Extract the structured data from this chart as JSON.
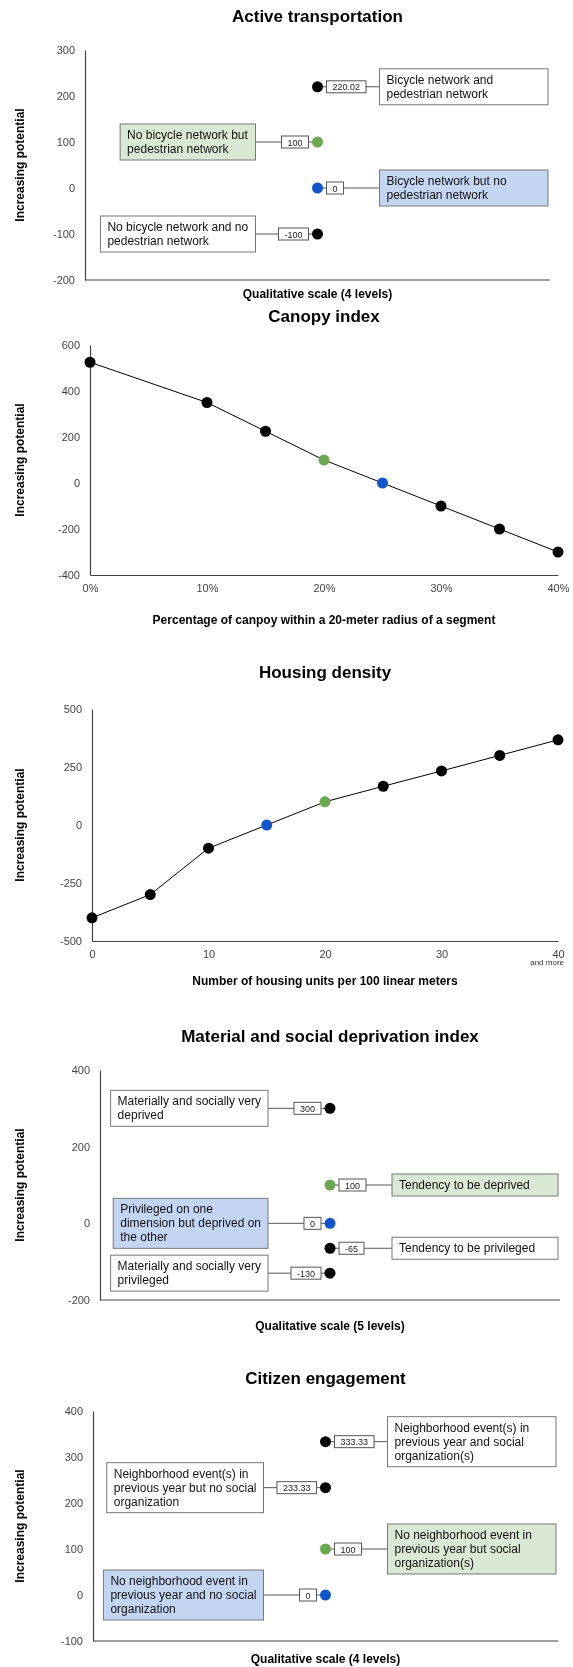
{
  "chart_data": [
    {
      "type": "scatter",
      "title": "Active transportation",
      "xlabel": "Qualitative scale (4 levels)",
      "ylabel": "Increasing potential",
      "categories": [
        null
      ],
      "ylim": [
        -200,
        300
      ],
      "yticks": [
        -200,
        -100,
        0,
        100,
        200,
        300
      ],
      "tick_labels": "y",
      "marker": "circle",
      "data_labels": true,
      "series": [
        {
          "name": "Bicycle network and pedestrian network",
          "color": "#000000",
          "values": [
            220.02
          ]
        },
        {
          "name": "No bicycle network but pedestrian network",
          "color": "#6aa84f",
          "values": [
            100
          ]
        },
        {
          "name": "Bicycle network but no pedestrian network",
          "color": "#1155cc",
          "values": [
            0
          ]
        },
        {
          "name": "No bicycle network and no pedestrian network",
          "color": "#000000",
          "values": [
            -100
          ]
        }
      ]
    },
    {
      "type": "line",
      "title": "Canopy index",
      "xlabel": "Percentage of canpoy within a 20-meter radius of a segment",
      "ylabel": "Increasing potential",
      "x": [
        0,
        10,
        15,
        20,
        25,
        30,
        35,
        40
      ],
      "xlim": [
        0,
        40
      ],
      "xticks": [
        {
          "value": 0,
          "label": "0%"
        },
        {
          "value": 10,
          "label": "10%"
        },
        {
          "value": 20,
          "label": "20%"
        },
        {
          "value": 30,
          "label": "30%"
        },
        {
          "value": 40,
          "label": "40%"
        }
      ],
      "ylim": [
        -400,
        600
      ],
      "yticks": [
        -400,
        -200,
        0,
        200,
        400,
        600
      ],
      "marker": "circle",
      "line_style": "solid",
      "series": [
        {
          "color": "#000000",
          "values": [
            525,
            350,
            225,
            100,
            0,
            -100,
            -200,
            -300
          ],
          "colors": [
            "#000000",
            "#000000",
            "#000000",
            "#6aa84f",
            "#1155cc",
            "#000000",
            "#000000",
            "#000000"
          ]
        }
      ]
    },
    {
      "type": "line",
      "title": "Housing density",
      "xlabel": "Number of housing units per 100 linear meters",
      "ylabel": "Increasing potential",
      "x": [
        0,
        5,
        10,
        15,
        20,
        25,
        30,
        35,
        40
      ],
      "xlim": [
        0,
        40
      ],
      "xticks": [
        0,
        10,
        20,
        30,
        40
      ],
      "ylim": [
        -500,
        500
      ],
      "yticks": [
        -500,
        -250,
        0,
        250,
        500
      ],
      "marker": "circle",
      "line_style": "solid",
      "annotations": [
        "and more"
      ],
      "series": [
        {
          "color": "#000000",
          "values": [
            -400,
            -300,
            -100,
            0,
            100,
            167,
            233,
            300,
            367
          ],
          "colors": [
            "#000000",
            "#000000",
            "#000000",
            "#1155cc",
            "#6aa84f",
            "#000000",
            "#000000",
            "#000000",
            "#000000"
          ]
        }
      ]
    },
    {
      "type": "scatter",
      "title": "Material and social deprivation index",
      "xlabel": "Qualitative scale (5 levels)",
      "ylabel": "Increasing potential",
      "categories": [
        null
      ],
      "ylim": [
        -200,
        400
      ],
      "yticks": [
        -200,
        0,
        200,
        400
      ],
      "tick_labels": "y",
      "marker": "circle",
      "data_labels": true,
      "series": [
        {
          "name": "Materially and socially very deprived",
          "color": "#000000",
          "values": [
            300
          ]
        },
        {
          "name": "Tendency to be deprived",
          "color": "#6aa84f",
          "values": [
            100
          ]
        },
        {
          "name": "Privileged on one dimension but deprived on the other",
          "color": "#1155cc",
          "values": [
            0
          ]
        },
        {
          "name": "Tendency to be privileged",
          "color": "#000000",
          "values": [
            -65
          ]
        },
        {
          "name": "Materially and socially very privileged",
          "color": "#000000",
          "values": [
            -130
          ]
        }
      ]
    },
    {
      "type": "scatter",
      "title": "Citizen engagement",
      "xlabel": "Qualitative scale (4 levels)",
      "ylabel": "Increasing potential",
      "categories": [
        null
      ],
      "ylim": [
        -100,
        400
      ],
      "yticks": [
        -100,
        0,
        100,
        200,
        300,
        400
      ],
      "tick_labels": "y",
      "marker": "circle",
      "data_labels": true,
      "series": [
        {
          "name": "Neighborhood event(s) in previous year and social organization(s)",
          "color": "#000000",
          "values": [
            333.33
          ]
        },
        {
          "name": "Neighborhood event(s) in previous year but no social organization",
          "color": "#000000",
          "values": [
            233.33
          ]
        },
        {
          "name": "No neighborhood event in previous year but social organization(s)",
          "color": "#6aa84f",
          "values": [
            100
          ]
        },
        {
          "name": "No neighborhood event in previous year and no social organization",
          "color": "#1155cc",
          "values": [
            0
          ]
        }
      ]
    }
  ]
}
